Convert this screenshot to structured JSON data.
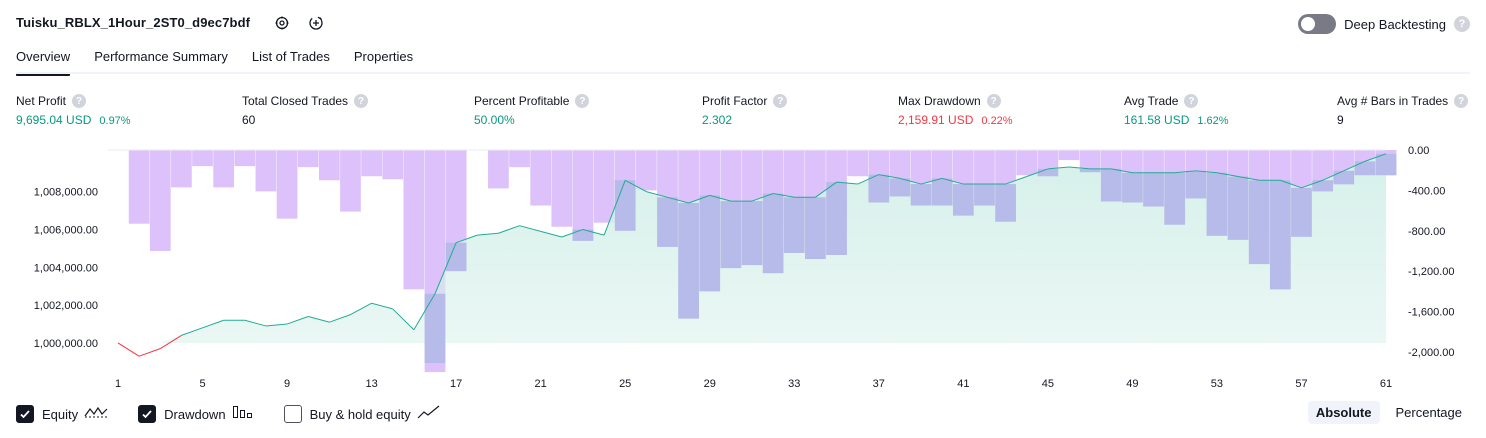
{
  "header": {
    "title": "Tuisku_RBLX_1Hour_2ST0_d9ec7bdf",
    "settings_icon": "gear-icon",
    "source_icon": "add-alert-icon",
    "deep_backtesting_label": "Deep Backtesting",
    "deep_backtesting_enabled": false,
    "help_glyph": "?"
  },
  "tabs": [
    {
      "label": "Overview",
      "active": true
    },
    {
      "label": "Performance Summary",
      "active": false
    },
    {
      "label": "List of Trades",
      "active": false
    },
    {
      "label": "Properties",
      "active": false
    }
  ],
  "metrics": [
    {
      "label": "Net Profit",
      "value": "9,695.04 USD",
      "sub": "0.97%",
      "color": "green"
    },
    {
      "label": "Total Closed Trades",
      "value": "60",
      "sub": "",
      "color": "dark"
    },
    {
      "label": "Percent Profitable",
      "value": "50.00%",
      "sub": "",
      "color": "green"
    },
    {
      "label": "Profit Factor",
      "value": "2.302",
      "sub": "",
      "color": "green"
    },
    {
      "label": "Max Drawdown",
      "value": "2,159.91 USD",
      "sub": "0.22%",
      "color": "red"
    },
    {
      "label": "Avg Trade",
      "value": "161.58 USD",
      "sub": "1.62%",
      "color": "green"
    },
    {
      "label": "Avg # Bars in Trades",
      "value": "9",
      "sub": "",
      "color": "dark"
    }
  ],
  "colors": {
    "green": "#089981",
    "red": "#f23645",
    "equity_line": "#22ab94",
    "equity_fill": "#d6f0ea",
    "drawdown_bar": "#dcc1fb",
    "overlap": "#b7bbe9"
  },
  "chart_data": {
    "type": "bar+area",
    "x": [
      1,
      2,
      3,
      4,
      5,
      6,
      7,
      8,
      9,
      10,
      11,
      12,
      13,
      14,
      15,
      16,
      17,
      18,
      19,
      20,
      21,
      22,
      23,
      24,
      25,
      26,
      27,
      28,
      29,
      30,
      31,
      32,
      33,
      34,
      35,
      36,
      37,
      38,
      39,
      40,
      41,
      42,
      43,
      44,
      45,
      46,
      47,
      48,
      49,
      50,
      51,
      52,
      53,
      54,
      55,
      56,
      57,
      58,
      59,
      60,
      61
    ],
    "x_ticks": [
      "1",
      "5",
      "9",
      "13",
      "17",
      "21",
      "25",
      "29",
      "33",
      "37",
      "41",
      "45",
      "49",
      "53",
      "57",
      "61"
    ],
    "left_axis_ticks": [
      "1,000,000.00",
      "1,002,000.00",
      "1,004,000.00",
      "1,006,000.00",
      "1,008,000.00"
    ],
    "right_axis_ticks": [
      "0.00",
      "-400.00",
      "-800.00",
      "-1,200.00",
      "-1,600.00",
      "-2,000.00"
    ],
    "left_range": [
      999100,
      1010200
    ],
    "right_range": [
      -2080,
      0
    ],
    "series": [
      {
        "name": "Equity",
        "values": [
          1000000,
          999300,
          999700,
          1000400,
          1000800,
          1001200,
          1001200,
          1000900,
          1001000,
          1001400,
          1001100,
          1001500,
          1002100,
          1001800,
          1000700,
          1002600,
          1005300,
          1005700,
          1005800,
          1006200,
          1005900,
          1005600,
          1006000,
          1005700,
          1008600,
          1008000,
          1007700,
          1007400,
          1007800,
          1007500,
          1007500,
          1007900,
          1007700,
          1007700,
          1008500,
          1008400,
          1008900,
          1008700,
          1008400,
          1008700,
          1008400,
          1008400,
          1008400,
          1008800,
          1009200,
          1009300,
          1009200,
          1009200,
          1009000,
          1009000,
          1009000,
          1009100,
          1009000,
          1008800,
          1008600,
          1008600,
          1008200,
          1008600,
          1009100,
          1009600,
          1010000
        ]
      },
      {
        "name": "Drawdown",
        "values": [
          0,
          -730,
          -1000,
          -370,
          -160,
          -370,
          -160,
          -410,
          -680,
          -170,
          -300,
          -610,
          -260,
          -290,
          -1380,
          -2200,
          -1200,
          0,
          -380,
          -170,
          -550,
          -760,
          -900,
          -720,
          -800,
          -400,
          -960,
          -1670,
          -1400,
          -1170,
          -1140,
          -1220,
          -1020,
          -1080,
          -1040,
          -260,
          -520,
          -460,
          -550,
          -550,
          -650,
          -550,
          -710,
          -250,
          -260,
          -100,
          -220,
          -510,
          -520,
          -560,
          -740,
          -480,
          -850,
          -890,
          -1130,
          -1380,
          -860,
          -410,
          -340,
          -250,
          -250
        ]
      }
    ]
  },
  "bottom": {
    "equity_label": "Equity",
    "equity_checked": true,
    "drawdown_label": "Drawdown",
    "drawdown_checked": true,
    "buyhold_label": "Buy & hold equity",
    "buyhold_checked": false,
    "absolute_label": "Absolute",
    "percentage_label": "Percentage",
    "mode": "Absolute"
  }
}
